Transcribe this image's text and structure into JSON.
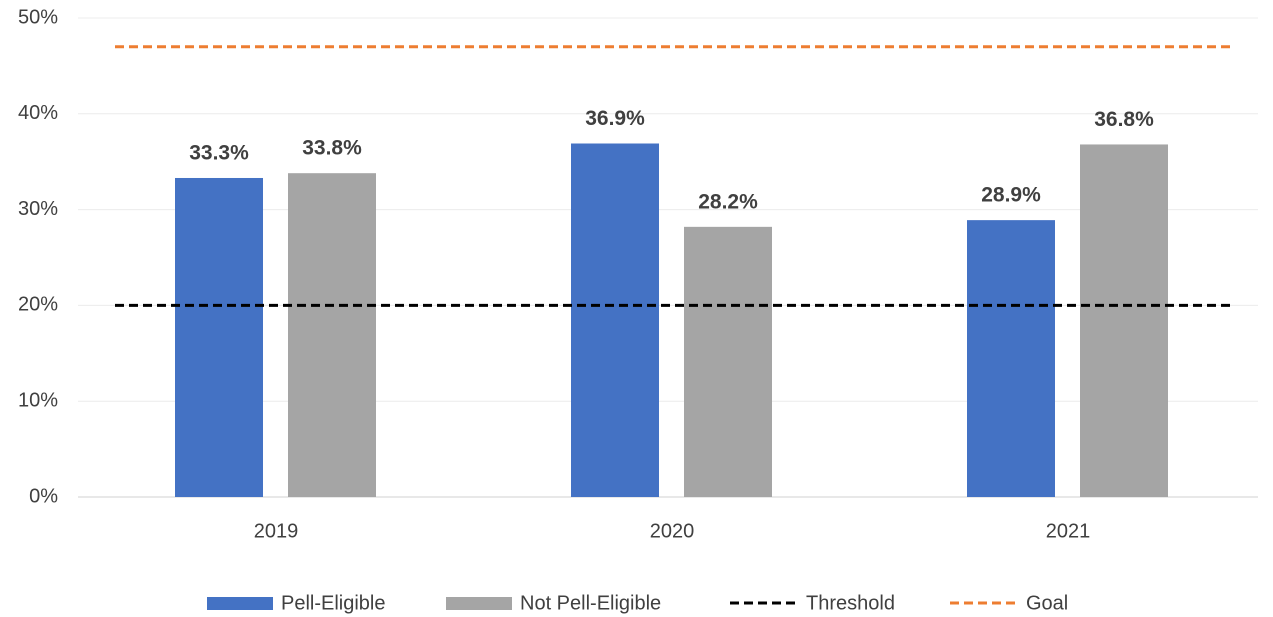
{
  "chart_data": {
    "type": "bar",
    "categories": [
      "2019",
      "2020",
      "2021"
    ],
    "series": [
      {
        "name": "Pell-Eligible",
        "color": "#4472c4",
        "values": [
          33.3,
          36.9,
          28.9
        ],
        "value_labels": [
          "33.3%",
          "36.9%",
          "28.9%"
        ]
      },
      {
        "name": "Not Pell-Eligible",
        "color": "#a5a5a5",
        "values": [
          33.8,
          28.2,
          36.8
        ],
        "value_labels": [
          "33.8%",
          "28.2%",
          "36.8%"
        ]
      }
    ],
    "reference_lines": [
      {
        "name": "Threshold",
        "color": "#000000",
        "value": 20,
        "dashed": true
      },
      {
        "name": "Goal",
        "color": "#ed7d31",
        "value": 47,
        "dashed": true
      }
    ],
    "ylim": [
      0,
      50
    ],
    "yticks": [
      {
        "value": 0,
        "label": "0%"
      },
      {
        "value": 10,
        "label": "10%"
      },
      {
        "value": 20,
        "label": "20%"
      },
      {
        "value": 30,
        "label": "30%"
      },
      {
        "value": 40,
        "label": "40%"
      },
      {
        "value": 50,
        "label": "50%"
      }
    ],
    "grid": true,
    "legend": "bottom"
  }
}
